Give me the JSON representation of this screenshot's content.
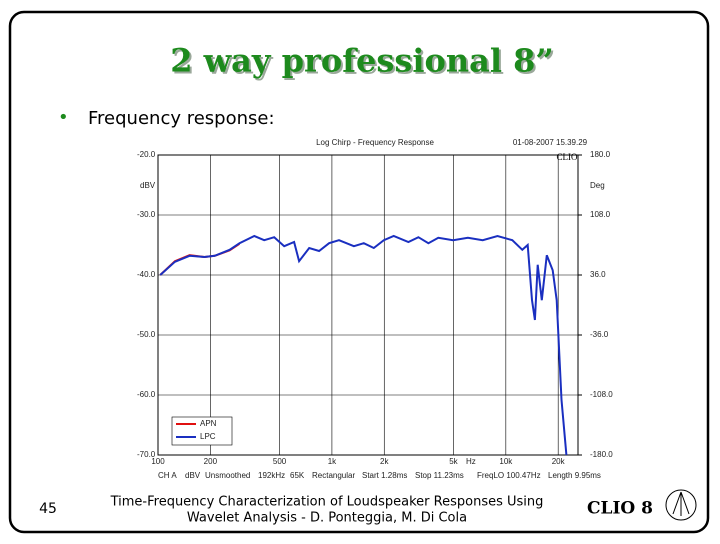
{
  "slide_title": "2 way professional 8”",
  "bullet": "Frequency response:",
  "page_number": "45",
  "footer_lines": [
    "Time-Frequency Characterization of Loudspeaker Responses Using",
    "Wavelet Analysis - D. Ponteggia, M. Di Cola"
  ],
  "logo": "CLIO 8",
  "chart_data": {
    "type": "line",
    "title": "Log Chirp - Frequency Response",
    "timestamp": "01-08-2007 15.39.29",
    "brand": "CLIO",
    "y_label": "dBV",
    "y2_label": "Deg",
    "x_label": "Hz",
    "info": [
      "CH A",
      "dBV",
      "Unsmoothed",
      "192kHz",
      "65K",
      "Rectangular",
      "Start 1.28ms",
      "Stop 11.23ms",
      "FreqLO 100.47Hz",
      "Length 9.95ms"
    ],
    "x_scale": "log",
    "grid": true,
    "legend": "lower left",
    "xlim": [
      100,
      26000
    ],
    "xticks": [
      100,
      200,
      500,
      {
        "value": 1000,
        "label": "1k"
      },
      {
        "value": 2000,
        "label": "2k"
      },
      {
        "value": 5000,
        "label": "5k"
      },
      {
        "value": 10000,
        "label": "10k"
      },
      {
        "value": 20000,
        "label": "20k"
      }
    ],
    "ylim": [
      -70,
      -20
    ],
    "yticks": [
      {
        "value": -20,
        "label": "-20.0"
      },
      {
        "value": -30,
        "label": "-30.0"
      },
      {
        "value": -40,
        "label": "-40.0"
      },
      {
        "value": -50,
        "label": "-50.0"
      },
      {
        "value": -60,
        "label": "-60.0"
      },
      {
        "value": -70,
        "label": "-70.0"
      }
    ],
    "y2lim": [
      -180,
      180
    ],
    "y2ticks": [
      {
        "value": 180,
        "label": "180.0"
      },
      {
        "value": 108,
        "label": "108.0"
      },
      {
        "value": 36,
        "label": "36.0"
      },
      {
        "value": -36,
        "label": "-36.0"
      },
      {
        "value": -108,
        "label": "-108.0"
      },
      {
        "value": -180,
        "label": "-180.0"
      }
    ],
    "x": [
      103,
      125,
      152,
      185,
      212,
      258,
      294,
      358,
      408,
      466,
      532,
      606,
      648,
      740,
      844,
      963,
      1099,
      1338,
      1526,
      1741,
      1987,
      2267,
      2754,
      3143,
      3586,
      4092,
      4978,
      6055,
      7366,
      8960,
      10900,
      12440,
      13350,
      14150,
      14700,
      15250,
      16100,
      17200,
      18600,
      19600,
      20900,
      22300
    ],
    "series": [
      {
        "name": "APN",
        "color": "#e01010",
        "values": [
          -40,
          -37.7,
          -36.7,
          -37,
          -36.8,
          -35.9,
          -34.8,
          null,
          null,
          null,
          null,
          null,
          null,
          null,
          null,
          null,
          null,
          null,
          null,
          null,
          null,
          null,
          null,
          null,
          null,
          null,
          null,
          null,
          null,
          null,
          null,
          null,
          null,
          null,
          null,
          null,
          null,
          null,
          null,
          null,
          null,
          null
        ]
      },
      {
        "name": "LPC",
        "color": "#1a2fc0",
        "values": [
          -40,
          -37.8,
          -36.8,
          -37,
          -36.8,
          -35.8,
          -34.7,
          -33.5,
          -34.2,
          -33.7,
          -35.2,
          -34.5,
          -37.7,
          -35.5,
          -36,
          -34.7,
          -34.2,
          -35.2,
          -34.7,
          -35.5,
          -34.2,
          -33.5,
          -34.5,
          -33.7,
          -34.7,
          -33.8,
          -34.2,
          -33.8,
          -34.2,
          -33.5,
          -34.2,
          -35.8,
          -35,
          -44.2,
          -47.5,
          -38.3,
          -44.2,
          -36.7,
          -39.2,
          -44.2,
          -60.8,
          -70
        ]
      }
    ]
  }
}
